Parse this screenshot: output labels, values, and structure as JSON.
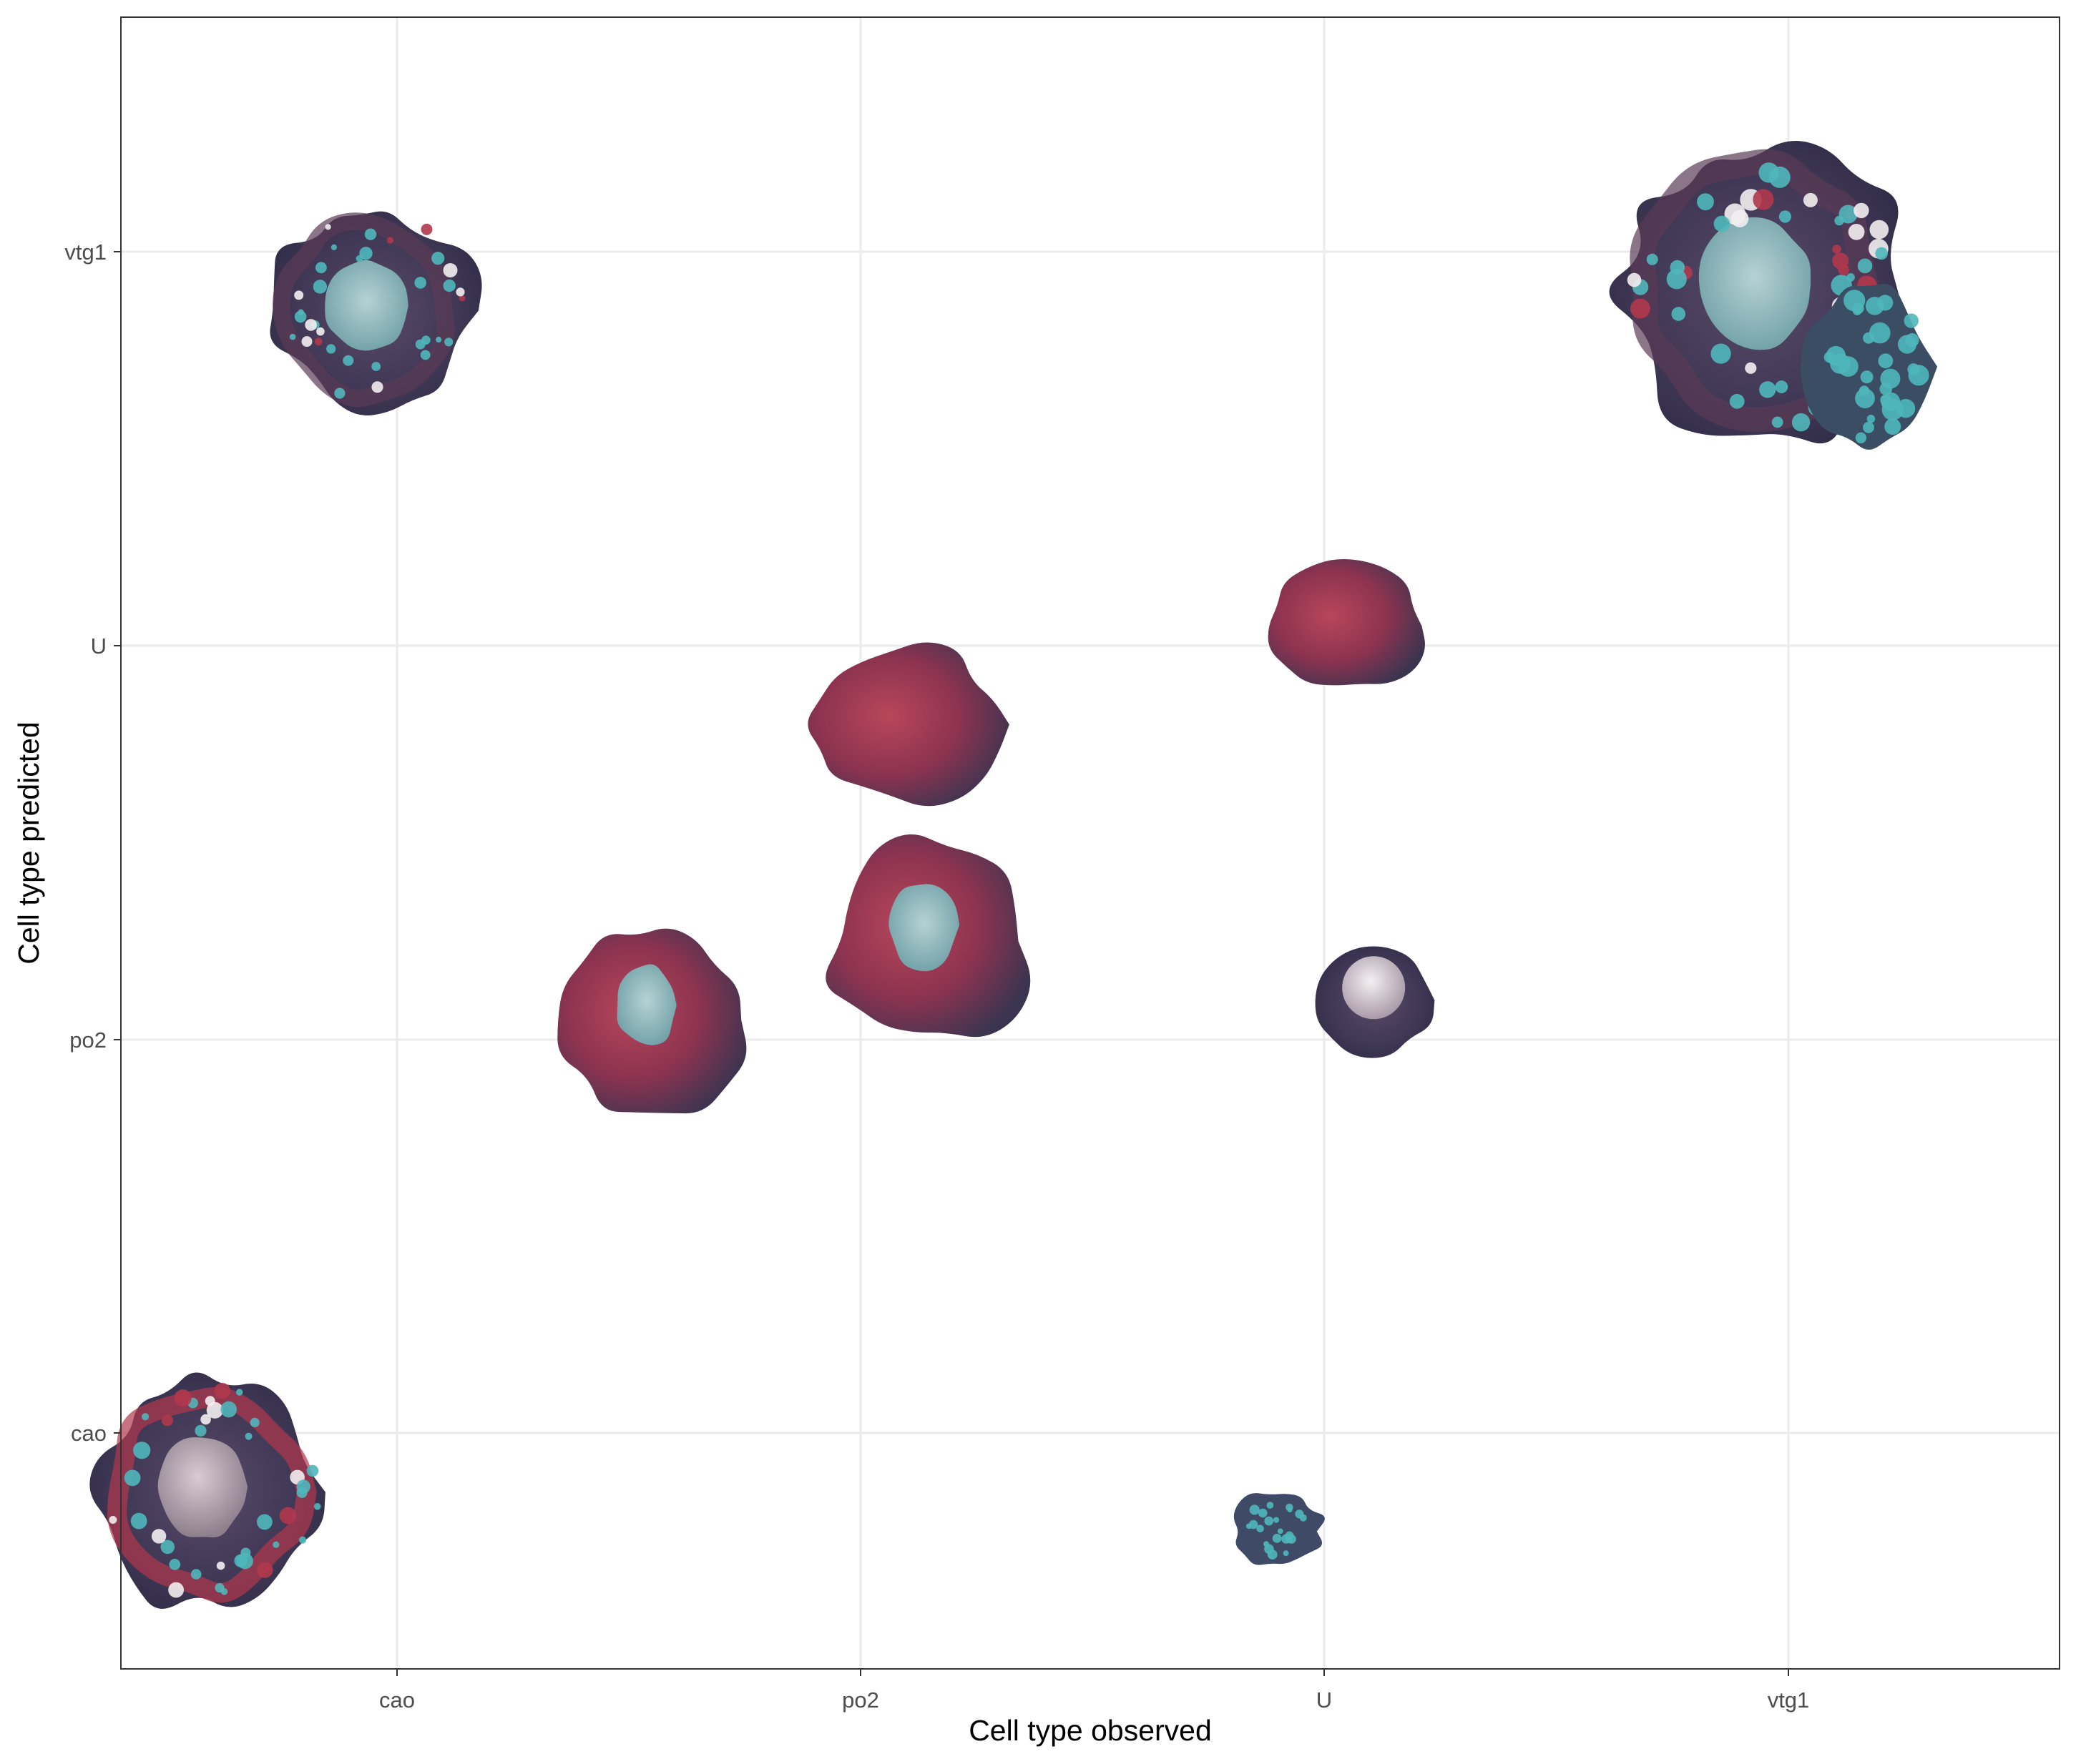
{
  "chart_data": {
    "type": "scatter",
    "xlabel": "Cell type observed",
    "ylabel": "Cell type predicted",
    "x_categories": [
      "cao",
      "po2",
      "U",
      "vtg1"
    ],
    "y_categories": [
      "cao",
      "po2",
      "U",
      "vtg1"
    ],
    "grid": true,
    "points": [
      {
        "observed": "cao",
        "predicted": "cao",
        "kind": "oocyte",
        "size": 0.95,
        "dx": -0.4,
        "dy": 0.15
      },
      {
        "observed": "cao",
        "predicted": "vtg1",
        "kind": "vitello",
        "size": 0.85,
        "dx": -0.05,
        "dy": 0.15
      },
      {
        "observed": "po2",
        "predicted": "po2",
        "kind": "red-oocyte",
        "size": 0.85,
        "dx": -0.45,
        "dy": -0.05
      },
      {
        "observed": "po2",
        "predicted": "po2",
        "kind": "red-oocyte",
        "size": 0.95,
        "dx": 0.15,
        "dy": -0.25
      },
      {
        "observed": "po2",
        "predicted": "U",
        "kind": "red-blob",
        "size": 0.8,
        "dx": 0.1,
        "dy": 0.2
      },
      {
        "observed": "U",
        "predicted": "U",
        "kind": "red-blob",
        "size": 0.65,
        "dx": 0.05,
        "dy": -0.05
      },
      {
        "observed": "U",
        "predicted": "po2",
        "kind": "white-oocyte",
        "size": 0.55,
        "dx": 0.1,
        "dy": -0.1
      },
      {
        "observed": "U",
        "predicted": "cao",
        "kind": "small-teal",
        "size": 0.45,
        "dx": -0.1,
        "dy": 0.25
      },
      {
        "observed": "vtg1",
        "predicted": "vtg1",
        "kind": "vitello-large",
        "size": 1.2,
        "dx": -0.05,
        "dy": 0.1
      }
    ],
    "colors": {
      "panel_border": "#333333",
      "grid": "#ebebeb",
      "tissue_dark": "#3d3653",
      "tissue_red": "#b0384d",
      "tissue_teal": "#4fb7bb",
      "tissue_pale": "#9dbdbf"
    }
  }
}
